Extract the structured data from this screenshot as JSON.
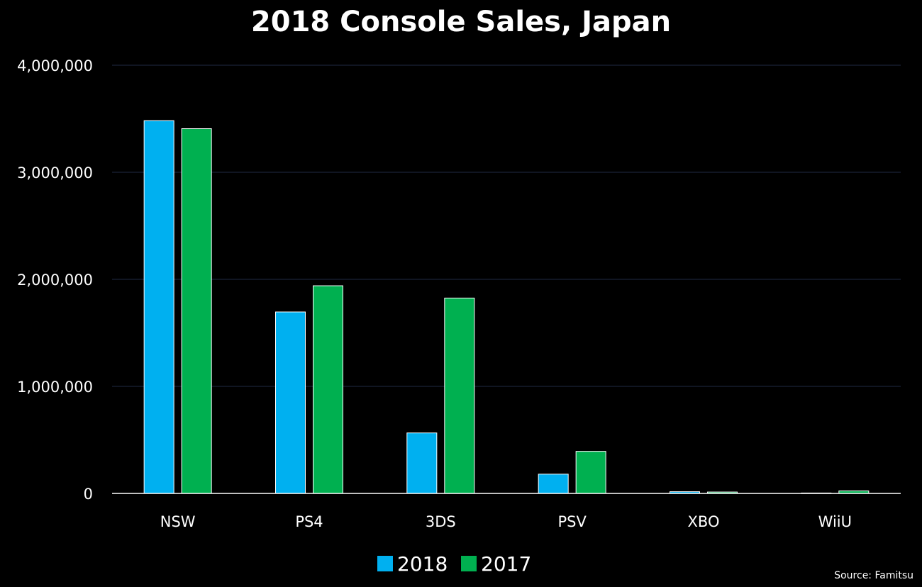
{
  "chart_data": {
    "type": "bar",
    "title": "2018 Console Sales, Japan",
    "source": "Source: Famitsu",
    "categories": [
      "NSW",
      "PS4",
      "3DS",
      "PSV",
      "XBO",
      "WiiU"
    ],
    "series": [
      {
        "name": "2018",
        "color": "#00b0f0",
        "values": [
          3482388,
          1695227,
          565000,
          180000,
          16000,
          4000
        ]
      },
      {
        "name": "2017",
        "color": "#00b050",
        "values": [
          3407248,
          1940000,
          1825000,
          393000,
          13000,
          24000
        ]
      }
    ],
    "ylim": [
      0,
      4000000
    ],
    "yticks": [
      0,
      1000000,
      2000000,
      3000000,
      4000000
    ],
    "ytick_labels": [
      "0",
      "1,000,000",
      "2,000,000",
      "3,000,000",
      "4,000,000"
    ],
    "grid": true,
    "legend": "bottom",
    "colors": {
      "background": "#000000",
      "grid": "#1f2a44",
      "axis": "#ffffff",
      "text": "#ffffff"
    }
  }
}
